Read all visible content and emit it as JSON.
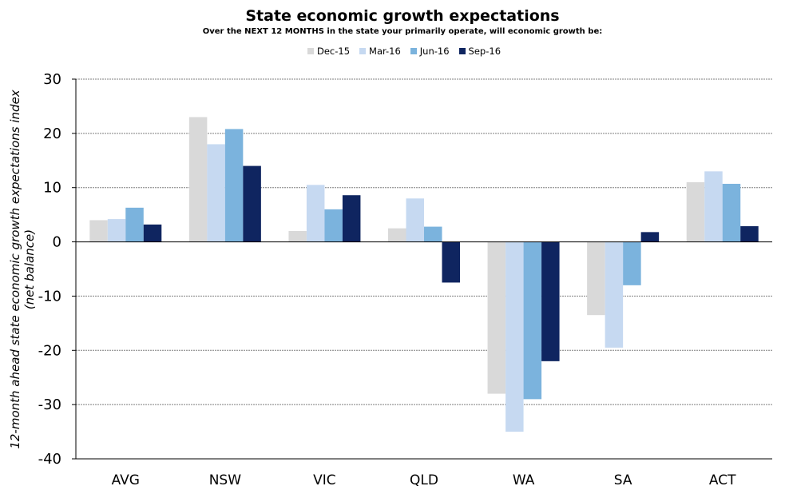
{
  "chart_data": {
    "type": "bar",
    "title": "State economic growth expectations",
    "subtitle": "Over the NEXT 12 MONTHS in the state your primarily operate, will economic growth be:",
    "ylabel": "12-month ahead state economic growth expectations index (net balance)",
    "xlabel": "",
    "ylim": [
      -40,
      30
    ],
    "yticks": [
      30,
      20,
      10,
      0,
      -10,
      -20,
      -30,
      -40
    ],
    "grid": true,
    "legend_position": "top",
    "categories": [
      "AVG",
      "NSW",
      "VIC",
      "QLD",
      "WA",
      "SA",
      "ACT"
    ],
    "series": [
      {
        "name": "Dec-15",
        "color": "#d9d9d9",
        "values": [
          4,
          23,
          2,
          2.5,
          -28,
          -13.5,
          11
        ]
      },
      {
        "name": "Mar-16",
        "color": "#c6d9f1",
        "values": [
          4.2,
          18,
          10.5,
          8,
          -35,
          -19.5,
          13
        ]
      },
      {
        "name": "Jun-16",
        "color": "#7bb3dd",
        "values": [
          6.3,
          20.8,
          6,
          2.8,
          -29,
          -8,
          10.7
        ]
      },
      {
        "name": "Sep-16",
        "color": "#0f2560",
        "values": [
          3.2,
          14,
          8.6,
          -7.5,
          -22,
          1.8,
          2.9
        ]
      }
    ]
  }
}
